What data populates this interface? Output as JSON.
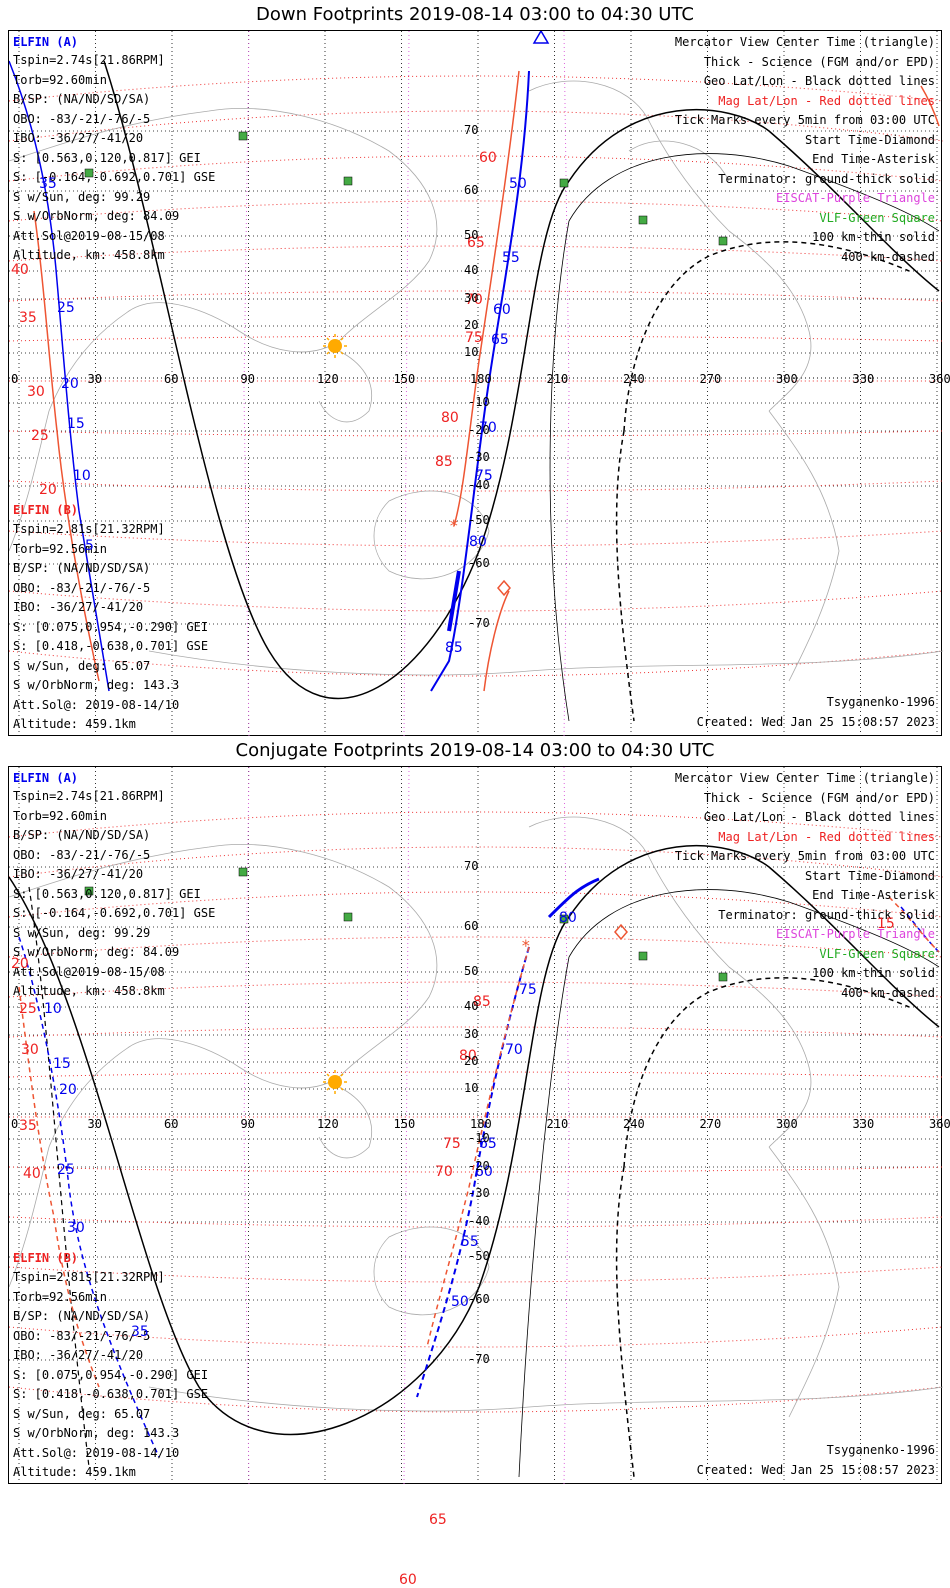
{
  "panels": [
    {
      "title": "Down Footprints 2019-08-14 03:00 to 04:30 UTC",
      "elfin_a": {
        "header": "ELFIN (A)",
        "lines": [
          "Tspin=2.74s[21.86RPM]",
          "Torb=92.60min",
          "B/SP: (NA/ND/SD/SA)",
          "OBO: -83/-21/-76/-5",
          "IBO: -36/27/-41/20",
          "S: [0.563,0.120,0.817] GEI",
          "S: [-0.164,-0.692,0.701] GSE",
          "S w/Sun, deg: 99.29",
          "S w/OrbNorm, deg: 84.09",
          "Att.Sol@2019-08-15/08",
          "Altitude, km: 458.8km"
        ]
      },
      "elfin_b": {
        "header": "ELFIN (B)",
        "lines": [
          "Tspin=2.81s[21.32RPM]",
          "Torb=92.56min",
          "B/SP: (NA/ND/SD/SA)",
          "OBO: -83/-21/-76/-5",
          "IBO: -36/27/-41/20",
          "S: [0.075,0.954,-0.290] GEI",
          "S: [0.418,-0.638,0.701] GSE",
          "S w/Sun, deg: 65.07",
          "S w/OrbNorm, deg: 143.3",
          "Att.Sol@: 2019-08-14/10",
          "Altitude: 459.1km"
        ]
      },
      "legend": [
        "Mercator View Center Time (triangle)",
        "Thick - Science (FGM and/or EPD)",
        "Geo Lat/Lon - Black dotted lines",
        "Mag Lat/Lon - Red dotted lines",
        "Tick Marks every 5min from 03:00 UTC",
        "Start Time-Diamond",
        "End Time-Asterisk",
        "Terminator: ground-thick solid",
        "EISCAT-Purple Triangle",
        "VLF-Green Square",
        "100 km-thin solid",
        "400 km-dashed"
      ],
      "model": "Tsyganenko-1996",
      "created": "Created: Wed Jan 25 15:08:57 2023",
      "a_ticks": [
        "35",
        "25",
        "20",
        "15",
        "10",
        "5",
        "50",
        "55",
        "60",
        "65",
        "70",
        "75",
        "80",
        "85"
      ],
      "b_ticks": [
        "40",
        "35",
        "30",
        "25",
        "20",
        "60",
        "65",
        "70",
        "75",
        "80",
        "85"
      ]
    },
    {
      "title": "Conjugate Footprints 2019-08-14 03:00 to 04:30 UTC",
      "elfin_a": {
        "header": "ELFIN (A)",
        "lines": [
          "Tspin=2.74s[21.86RPM]",
          "Torb=92.60min",
          "B/SP: (NA/ND/SD/SA)",
          "OBO: -83/-21/-76/-5",
          "IBO: -36/27/-41/20",
          "S: [0.563,0.120,0.817] GEI",
          "S: [-0.164,-0.692,0.701] GSE",
          "S w/Sun, deg: 99.29",
          "S w/OrbNorm, deg: 84.09",
          "Att.Sol@2019-08-15/08",
          "Altitude, km: 458.8km"
        ]
      },
      "elfin_b": {
        "header": "ELFIN (B)",
        "lines": [
          "Tspin=2.81s[21.32RPM]",
          "Torb=92.56min",
          "B/SP: (NA/ND/SD/SA)",
          "OBO: -83/-21/-76/-5",
          "IBO: -36/27/-41/20",
          "S: [0.075,0.954,-0.290] GEI",
          "S: [0.418,-0.638,0.701] GSE",
          "S w/Sun, deg: 65.07",
          "S w/OrbNorm, deg: 143.3",
          "Att.Sol@: 2019-08-14/10",
          "Altitude: 459.1km"
        ]
      },
      "legend": [
        "Mercator View Center Time (triangle)",
        "Thick - Science (FGM and/or EPD)",
        "Geo Lat/Lon - Black dotted lines",
        "Mag Lat/Lon - Red dotted lines",
        "Tick Marks every 5min from 03:00 UTC",
        "Start Time-Diamond",
        "End Time-Asterisk",
        "Terminator: ground-thick solid",
        "EISCAT-Purple Triangle",
        "VLF-Green Square",
        "100 km-thin solid",
        "400 km-dashed"
      ],
      "model": "Tsyganenko-1996",
      "created": "Created: Wed Jan 25 15:08:57 2023",
      "a_ticks": [
        "10",
        "15",
        "20",
        "25",
        "30",
        "35",
        "50",
        "55",
        "60",
        "65",
        "70",
        "75",
        "80"
      ],
      "b_ticks": [
        "20",
        "25",
        "30",
        "35",
        "40",
        "60",
        "65",
        "70",
        "75",
        "80",
        "85",
        "15"
      ]
    }
  ],
  "lon_labels": [
    "0",
    "30",
    "60",
    "90",
    "120",
    "150",
    "180",
    "210",
    "240",
    "270",
    "300",
    "330",
    "360"
  ],
  "lat_labels": [
    "70",
    "60",
    "50",
    "40",
    "30",
    "20",
    "10",
    "-10",
    "-20",
    "-30",
    "-40",
    "-50",
    "-60",
    "-70"
  ],
  "colors": {
    "elfin_a": "#0000ee",
    "elfin_b": "#ee5533",
    "grid": "#000000",
    "mag_grid": "#ee2222",
    "eiscat": "#dd44dd",
    "vlf": "#44aa44",
    "sun": "#ffaa00"
  }
}
